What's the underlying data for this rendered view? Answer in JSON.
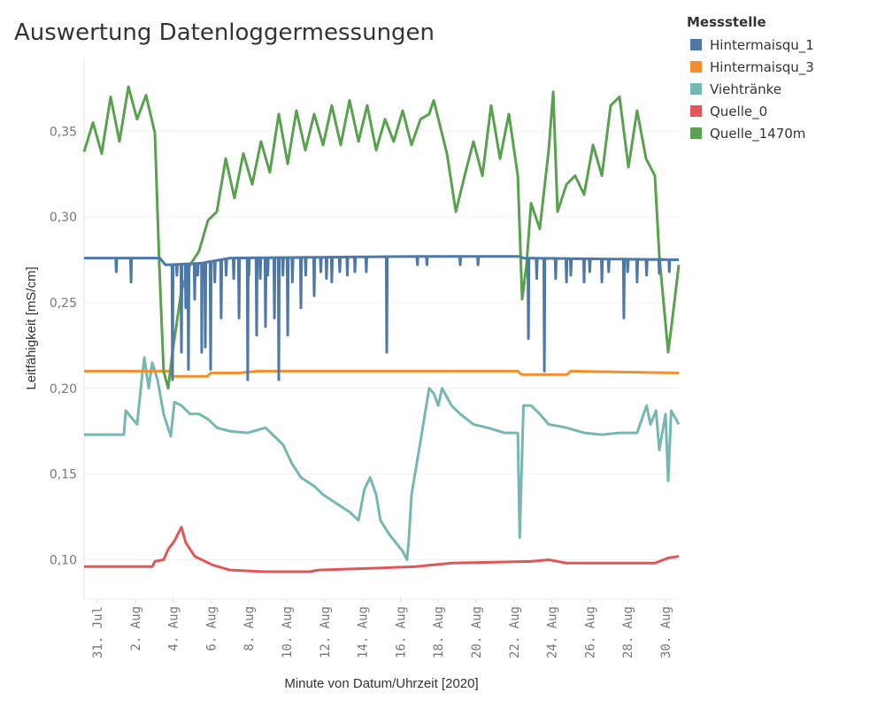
{
  "chart_data": {
    "type": "line",
    "title": "Auswertung Datenloggermessungen",
    "xlabel": "Minute von Datum/Uhrzeit [2020]",
    "ylabel": "Leitfähigkeit [mS/cm]",
    "xlim": [
      -0.7,
      30.7
    ],
    "ylim": [
      0.077,
      0.393
    ],
    "grid": true,
    "x_ticks": [
      {
        "day": 0,
        "label": "31. Jul"
      },
      {
        "day": 2,
        "label": "2. Aug"
      },
      {
        "day": 4,
        "label": "4. Aug"
      },
      {
        "day": 6,
        "label": "6. Aug"
      },
      {
        "day": 8,
        "label": "8. Aug"
      },
      {
        "day": 10,
        "label": "10. Aug"
      },
      {
        "day": 12,
        "label": "12. Aug"
      },
      {
        "day": 14,
        "label": "14. Aug"
      },
      {
        "day": 16,
        "label": "16. Aug"
      },
      {
        "day": 18,
        "label": "18. Aug"
      },
      {
        "day": 20,
        "label": "20. Aug"
      },
      {
        "day": 22,
        "label": "22. Aug"
      },
      {
        "day": 24,
        "label": "24. Aug"
      },
      {
        "day": 26,
        "label": "26. Aug"
      },
      {
        "day": 28,
        "label": "28. Aug"
      },
      {
        "day": 30,
        "label": "30. Aug"
      }
    ],
    "y_ticks": [
      {
        "value": 0.1,
        "label": "0,10"
      },
      {
        "value": 0.15,
        "label": "0,15"
      },
      {
        "value": 0.2,
        "label": "0,20"
      },
      {
        "value": 0.25,
        "label": "0,25"
      },
      {
        "value": 0.3,
        "label": "0,30"
      },
      {
        "value": 0.35,
        "label": "0,35"
      }
    ],
    "legend": {
      "title": "Messstelle",
      "placement": "top-right"
    },
    "series": [
      {
        "name": "Hintermaisqu_1",
        "color": "#4e79a7",
        "points": [
          [
            -0.7,
            0.276
          ],
          [
            3.3,
            0.276
          ],
          [
            3.6,
            0.272
          ],
          [
            5.5,
            0.273
          ],
          [
            7.0,
            0.276
          ],
          [
            17,
            0.277
          ],
          [
            22.3,
            0.277
          ],
          [
            22.5,
            0.276
          ],
          [
            30.7,
            0.275
          ]
        ],
        "spikes": [
          [
            1.0,
            0.268
          ],
          [
            1.78,
            0.262
          ],
          [
            3.97,
            0.205
          ],
          [
            4.2,
            0.266
          ],
          [
            4.44,
            0.221
          ],
          [
            4.67,
            0.247
          ],
          [
            4.81,
            0.211
          ],
          [
            5.14,
            0.252
          ],
          [
            5.3,
            0.266
          ],
          [
            5.51,
            0.221
          ],
          [
            5.7,
            0.224
          ],
          [
            5.98,
            0.211
          ],
          [
            6.2,
            0.262
          ],
          [
            6.54,
            0.241
          ],
          [
            6.8,
            0.266
          ],
          [
            7.2,
            0.264
          ],
          [
            7.48,
            0.241
          ],
          [
            7.94,
            0.205
          ],
          [
            8.0,
            0.266
          ],
          [
            8.41,
            0.231
          ],
          [
            8.6,
            0.264
          ],
          [
            8.88,
            0.236
          ],
          [
            9.0,
            0.266
          ],
          [
            9.35,
            0.241
          ],
          [
            9.58,
            0.205
          ],
          [
            9.8,
            0.266
          ],
          [
            10.05,
            0.231
          ],
          [
            10.3,
            0.262
          ],
          [
            10.75,
            0.247
          ],
          [
            11.0,
            0.266
          ],
          [
            11.45,
            0.254
          ],
          [
            11.8,
            0.268
          ],
          [
            12.1,
            0.264
          ],
          [
            12.38,
            0.262
          ],
          [
            12.8,
            0.268
          ],
          [
            13.2,
            0.266
          ],
          [
            13.6,
            0.268
          ],
          [
            14.2,
            0.268
          ],
          [
            15.28,
            0.221
          ],
          [
            16.9,
            0.272
          ],
          [
            17.4,
            0.272
          ],
          [
            19.16,
            0.272
          ],
          [
            20.1,
            0.272
          ],
          [
            22.76,
            0.229
          ],
          [
            23.2,
            0.264
          ],
          [
            23.6,
            0.21
          ],
          [
            24.2,
            0.264
          ],
          [
            24.77,
            0.262
          ],
          [
            25.0,
            0.266
          ],
          [
            25.7,
            0.262
          ],
          [
            26.0,
            0.268
          ],
          [
            26.64,
            0.262
          ],
          [
            27.0,
            0.268
          ],
          [
            27.8,
            0.241
          ],
          [
            28.0,
            0.268
          ],
          [
            28.5,
            0.262
          ],
          [
            29.0,
            0.266
          ],
          [
            29.67,
            0.267
          ],
          [
            30.2,
            0.268
          ]
        ]
      },
      {
        "name": "Hintermaisqu_3",
        "color": "#f28e2b",
        "points": [
          [
            -0.7,
            0.21
          ],
          [
            3.8,
            0.21
          ],
          [
            4.0,
            0.207
          ],
          [
            5.8,
            0.207
          ],
          [
            6.0,
            0.209
          ],
          [
            7.5,
            0.209
          ],
          [
            8.5,
            0.21
          ],
          [
            22.2,
            0.21
          ],
          [
            22.4,
            0.208
          ],
          [
            24.8,
            0.208
          ],
          [
            25.0,
            0.21
          ],
          [
            30.7,
            0.209
          ]
        ]
      },
      {
        "name": "Viehtränke",
        "color": "#76b7b2",
        "points": [
          [
            -0.7,
            0.173
          ],
          [
            1.4,
            0.173
          ],
          [
            1.5,
            0.187
          ],
          [
            2.1,
            0.179
          ],
          [
            2.34,
            0.205
          ],
          [
            2.48,
            0.218
          ],
          [
            2.71,
            0.2
          ],
          [
            2.9,
            0.215
          ],
          [
            3.18,
            0.205
          ],
          [
            3.5,
            0.185
          ],
          [
            3.88,
            0.172
          ],
          [
            4.07,
            0.192
          ],
          [
            4.44,
            0.19
          ],
          [
            4.9,
            0.185
          ],
          [
            5.37,
            0.185
          ],
          [
            5.84,
            0.182
          ],
          [
            6.31,
            0.177
          ],
          [
            7.0,
            0.175
          ],
          [
            7.94,
            0.174
          ],
          [
            8.88,
            0.177
          ],
          [
            9.35,
            0.172
          ],
          [
            9.81,
            0.167
          ],
          [
            10.28,
            0.156
          ],
          [
            10.75,
            0.148
          ],
          [
            11.45,
            0.143
          ],
          [
            11.92,
            0.138
          ],
          [
            12.6,
            0.133
          ],
          [
            13.3,
            0.128
          ],
          [
            13.79,
            0.123
          ],
          [
            14.1,
            0.141
          ],
          [
            14.4,
            0.148
          ],
          [
            14.72,
            0.138
          ],
          [
            14.95,
            0.123
          ],
          [
            15.4,
            0.115
          ],
          [
            16.12,
            0.105
          ],
          [
            16.35,
            0.1
          ],
          [
            16.45,
            0.112
          ],
          [
            16.59,
            0.138
          ],
          [
            17.06,
            0.169
          ],
          [
            17.52,
            0.2
          ],
          [
            17.76,
            0.197
          ],
          [
            18.0,
            0.19
          ],
          [
            18.2,
            0.2
          ],
          [
            18.7,
            0.19
          ],
          [
            19.16,
            0.185
          ],
          [
            19.86,
            0.179
          ],
          [
            20.6,
            0.177
          ],
          [
            21.5,
            0.174
          ],
          [
            22.2,
            0.174
          ],
          [
            22.3,
            0.113
          ],
          [
            22.5,
            0.19
          ],
          [
            22.9,
            0.19
          ],
          [
            23.36,
            0.185
          ],
          [
            23.83,
            0.179
          ],
          [
            24.77,
            0.177
          ],
          [
            25.7,
            0.174
          ],
          [
            26.64,
            0.173
          ],
          [
            27.57,
            0.174
          ],
          [
            28.5,
            0.174
          ],
          [
            29.0,
            0.19
          ],
          [
            29.2,
            0.179
          ],
          [
            29.5,
            0.187
          ],
          [
            29.67,
            0.164
          ],
          [
            30.0,
            0.185
          ],
          [
            30.14,
            0.146
          ],
          [
            30.3,
            0.187
          ],
          [
            30.7,
            0.179
          ]
        ]
      },
      {
        "name": "Quelle_0",
        "color": "#e15759",
        "points": [
          [
            -0.7,
            0.096
          ],
          [
            2.9,
            0.096
          ],
          [
            3.04,
            0.099
          ],
          [
            3.5,
            0.1
          ],
          [
            3.74,
            0.106
          ],
          [
            4.07,
            0.111
          ],
          [
            4.44,
            0.119
          ],
          [
            4.67,
            0.11
          ],
          [
            5.14,
            0.102
          ],
          [
            6.07,
            0.097
          ],
          [
            7.0,
            0.094
          ],
          [
            8.88,
            0.093
          ],
          [
            11.21,
            0.093
          ],
          [
            11.68,
            0.094
          ],
          [
            14.5,
            0.095
          ],
          [
            16.8,
            0.096
          ],
          [
            18.7,
            0.098
          ],
          [
            22.9,
            0.099
          ],
          [
            23.83,
            0.1
          ],
          [
            24.77,
            0.098
          ],
          [
            29.44,
            0.098
          ],
          [
            30.14,
            0.101
          ],
          [
            30.7,
            0.102
          ]
        ]
      },
      {
        "name": "Quelle_1470m",
        "color": "#59a14f",
        "points": [
          [
            -0.7,
            0.338
          ],
          [
            -0.23,
            0.355
          ],
          [
            0.23,
            0.337
          ],
          [
            0.7,
            0.37
          ],
          [
            1.17,
            0.344
          ],
          [
            1.64,
            0.376
          ],
          [
            2.1,
            0.357
          ],
          [
            2.57,
            0.371
          ],
          [
            3.04,
            0.349
          ],
          [
            3.27,
            0.272
          ],
          [
            3.5,
            0.21
          ],
          [
            3.74,
            0.2
          ],
          [
            3.97,
            0.221
          ],
          [
            4.44,
            0.257
          ],
          [
            4.9,
            0.272
          ],
          [
            5.37,
            0.28
          ],
          [
            5.84,
            0.298
          ],
          [
            6.31,
            0.303
          ],
          [
            6.78,
            0.334
          ],
          [
            7.24,
            0.311
          ],
          [
            7.71,
            0.337
          ],
          [
            8.18,
            0.319
          ],
          [
            8.64,
            0.344
          ],
          [
            9.11,
            0.326
          ],
          [
            9.58,
            0.36
          ],
          [
            10.05,
            0.331
          ],
          [
            10.51,
            0.362
          ],
          [
            10.98,
            0.339
          ],
          [
            11.45,
            0.36
          ],
          [
            11.92,
            0.342
          ],
          [
            12.38,
            0.365
          ],
          [
            12.85,
            0.342
          ],
          [
            13.32,
            0.368
          ],
          [
            13.79,
            0.344
          ],
          [
            14.25,
            0.365
          ],
          [
            14.72,
            0.339
          ],
          [
            15.19,
            0.357
          ],
          [
            15.65,
            0.344
          ],
          [
            16.12,
            0.362
          ],
          [
            16.59,
            0.342
          ],
          [
            17.06,
            0.357
          ],
          [
            17.52,
            0.36
          ],
          [
            17.76,
            0.368
          ],
          [
            18.46,
            0.337
          ],
          [
            18.93,
            0.303
          ],
          [
            19.39,
            0.324
          ],
          [
            19.86,
            0.344
          ],
          [
            20.33,
            0.324
          ],
          [
            20.79,
            0.365
          ],
          [
            21.26,
            0.334
          ],
          [
            21.73,
            0.36
          ],
          [
            22.2,
            0.324
          ],
          [
            22.43,
            0.252
          ],
          [
            22.66,
            0.272
          ],
          [
            22.9,
            0.308
          ],
          [
            23.36,
            0.293
          ],
          [
            23.83,
            0.339
          ],
          [
            24.07,
            0.373
          ],
          [
            24.3,
            0.303
          ],
          [
            24.77,
            0.319
          ],
          [
            25.23,
            0.324
          ],
          [
            25.7,
            0.313
          ],
          [
            26.17,
            0.342
          ],
          [
            26.64,
            0.324
          ],
          [
            27.1,
            0.365
          ],
          [
            27.57,
            0.37
          ],
          [
            28.04,
            0.329
          ],
          [
            28.5,
            0.362
          ],
          [
            28.97,
            0.334
          ],
          [
            29.44,
            0.324
          ],
          [
            29.67,
            0.277
          ],
          [
            30.14,
            0.221
          ],
          [
            30.37,
            0.241
          ],
          [
            30.7,
            0.272
          ]
        ]
      }
    ]
  }
}
